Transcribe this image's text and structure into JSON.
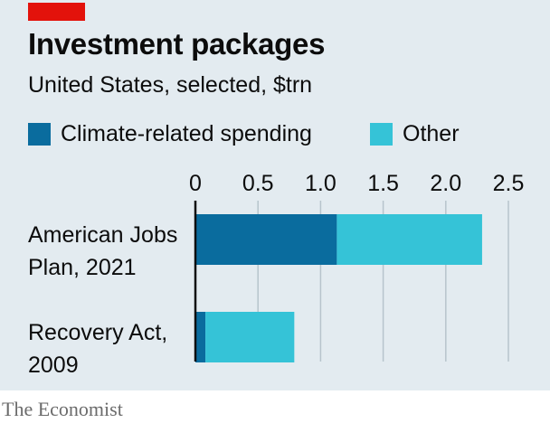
{
  "header": {
    "title": "Investment packages",
    "subtitle": "United States, selected, $trn"
  },
  "legend": [
    {
      "label": "Climate-related spending",
      "color": "#0a6c9e"
    },
    {
      "label": "Other",
      "color": "#35c3d7"
    }
  ],
  "chart_data": {
    "type": "bar",
    "orientation": "horizontal",
    "stacked": true,
    "title": "Investment packages",
    "subtitle": "United States, selected, $trn",
    "categories": [
      [
        "American Jobs",
        "Plan, 2021"
      ],
      [
        "Recovery Act,",
        "2009"
      ]
    ],
    "series": [
      {
        "name": "Climate-related spending",
        "color": "#0a6c9e",
        "values": [
          1.13,
          0.08
        ]
      },
      {
        "name": "Other",
        "color": "#35c3d7",
        "values": [
          1.16,
          0.71
        ]
      }
    ],
    "xlim": [
      0,
      2.5
    ],
    "x_ticks": [
      0,
      0.5,
      1.0,
      1.5,
      2.0,
      2.5
    ],
    "x_tick_labels": [
      "0",
      "0.5",
      "1.0",
      "1.5",
      "2.0",
      "2.5"
    ],
    "xlabel": "",
    "ylabel": "",
    "grid": true,
    "legend_position": "top"
  },
  "footer": {
    "source": "The Economist"
  },
  "colors": {
    "panel_background": "#e3ebf0",
    "gridline": "#b7c4cc",
    "axis": "#0c0c0c",
    "brand_red": "#e3120b"
  }
}
